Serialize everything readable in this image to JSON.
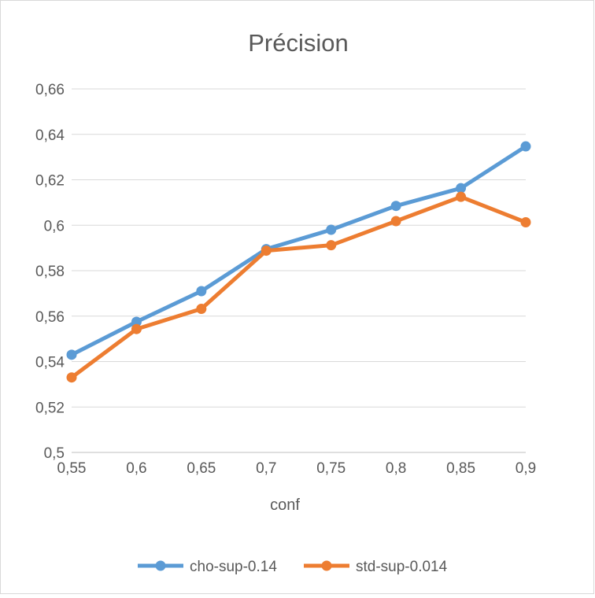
{
  "chart_data": {
    "type": "line",
    "title": "Précision",
    "xlabel": "conf",
    "ylabel": "",
    "x": [
      "0,55",
      "0,6",
      "0,65",
      "0,7",
      "0,75",
      "0,8",
      "0,85",
      "0,9"
    ],
    "xvalues": [
      0.55,
      0.6,
      0.65,
      0.7,
      0.75,
      0.8,
      0.85,
      0.9
    ],
    "yticks": [
      "0,5",
      "0,52",
      "0,54",
      "0,56",
      "0,58",
      "0,6",
      "0,62",
      "0,64",
      "0,66"
    ],
    "ylim": [
      0.5,
      0.66
    ],
    "grid": true,
    "legend_position": "bottom",
    "series": [
      {
        "name": "cho-sup-0.14",
        "color": "#5b9bd5",
        "values": [
          0.543,
          0.5575,
          0.571,
          0.5895,
          0.598,
          0.6085,
          0.6163,
          0.6347
        ]
      },
      {
        "name": "std-sup-0.014",
        "color": "#ed7d31",
        "values": [
          0.533,
          0.5543,
          0.5632,
          0.5888,
          0.5912,
          0.6018,
          0.6125,
          0.6013
        ]
      }
    ]
  }
}
